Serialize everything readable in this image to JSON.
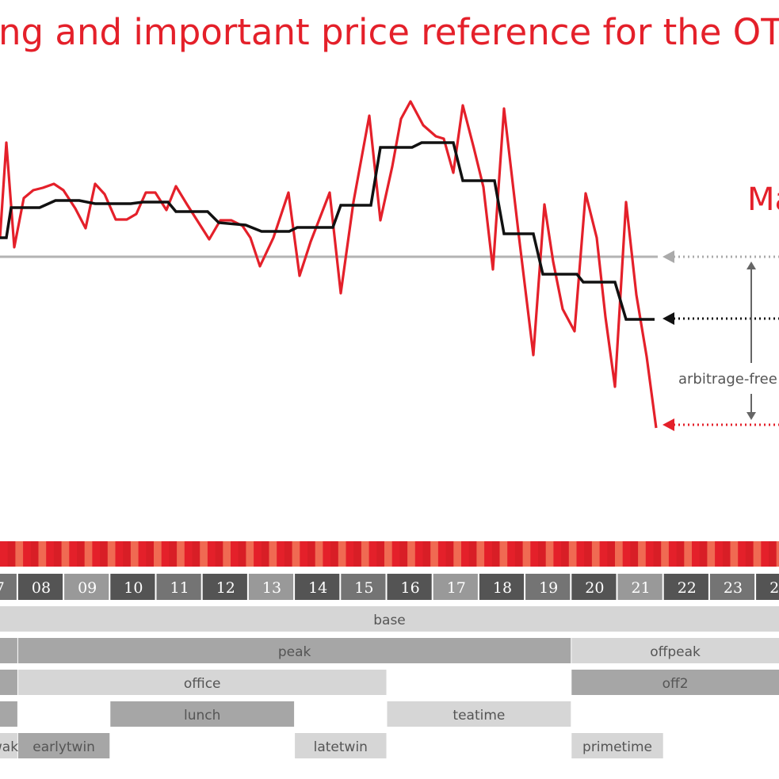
{
  "title": "ng and important price reference for the OTC m",
  "side_label": "Ma",
  "annotation": "arbitrage-free",
  "colors": {
    "hourly": "#e4202a",
    "blocks": "#111111",
    "reference": "#b3b3b3",
    "hour_dark": "#545454",
    "hour_mid": "#747474",
    "hour_light": "#999999",
    "band_light": "#d6d6d6",
    "band_mid": "#a6a6a6"
  },
  "heat_colors": [
    "#e4202a",
    "#f25a45",
    "#f06a52",
    "#ea3d33",
    "#f37a60",
    "#d81e26",
    "#ef4d3c",
    "#f58a70"
  ],
  "chart_data": {
    "type": "line",
    "x_unit": "quarter-hour index",
    "series": [
      {
        "values": [
          95,
          100,
          90,
          125,
          95,
          135,
          140,
          143,
          145,
          150,
          148,
          140,
          120,
          110,
          130,
          145,
          140,
          125,
          130,
          145,
          150,
          140,
          125,
          125,
          135,
          138,
          148,
          145,
          150,
          138,
          132,
          118,
          108,
          105,
          102,
          100,
          95,
          80,
          70,
          65,
          45,
          65,
          70,
          82,
          93,
          100,
          115,
          80,
          65,
          35,
          20,
          17,
          20,
          30,
          50,
          55,
          60,
          80,
          115,
          105,
          100,
          65,
          45,
          60,
          85,
          105,
          115,
          100,
          90,
          80,
          100,
          125,
          120,
          110,
          115,
          115,
          140,
          160,
          165,
          135,
          115,
          170,
          180,
          160,
          135,
          120,
          110,
          100
        ]
      },
      {
        "values": [
          108,
          108,
          108,
          108,
          107,
          107,
          107,
          108,
          108,
          108,
          107,
          107,
          107,
          107,
          106,
          106,
          105,
          105,
          105,
          105,
          104,
          104,
          104,
          104,
          104,
          103,
          103,
          103,
          103,
          103,
          102,
          102,
          101,
          101,
          100,
          100,
          98,
          98,
          98,
          99,
          98,
          97,
          96,
          95,
          92,
          90,
          88,
          82,
          80,
          80,
          80,
          80,
          81,
          83,
          85,
          90,
          95,
          96,
          97,
          99,
          100,
          100,
          100,
          100,
          105,
          108,
          110,
          112,
          113,
          113,
          114,
          114,
          114,
          114,
          114,
          114,
          115,
          116,
          116,
          116,
          117,
          117,
          117,
          116,
          116,
          116,
          116,
          116
        ]
      }
    ],
    "reference_levels": [
      110,
      126,
      152
    ],
    "hours": [
      "07",
      "08",
      "09",
      "10",
      "11",
      "12",
      "13",
      "14",
      "15",
      "16",
      "17",
      "18",
      "19",
      "20",
      "21",
      "22",
      "23",
      "24"
    ],
    "bands": [
      {
        "label": "base",
        "start": 6.5,
        "end": 24
      },
      {
        "label": "",
        "start": 6.5,
        "end": 8
      },
      {
        "label": "peak",
        "start": 8,
        "end": 20
      },
      {
        "label": "offpeak",
        "start": 20,
        "end": 24
      },
      {
        "label": "",
        "start": 6.5,
        "end": 8
      },
      {
        "label": "office",
        "start": 8,
        "end": 16
      },
      {
        "label": "off2",
        "start": 20,
        "end": 24
      },
      {
        "label": "",
        "start": 6.5,
        "end": 8
      },
      {
        "label": "lunch",
        "start": 10,
        "end": 14
      },
      {
        "label": "teatime",
        "start": 16,
        "end": 20
      },
      {
        "label": "wake",
        "start": 6.5,
        "end": 8
      },
      {
        "label": "earlytwin",
        "start": 8,
        "end": 10
      },
      {
        "label": "latetwin",
        "start": 14,
        "end": 16
      },
      {
        "label": "primetime",
        "start": 20,
        "end": 22
      }
    ]
  }
}
